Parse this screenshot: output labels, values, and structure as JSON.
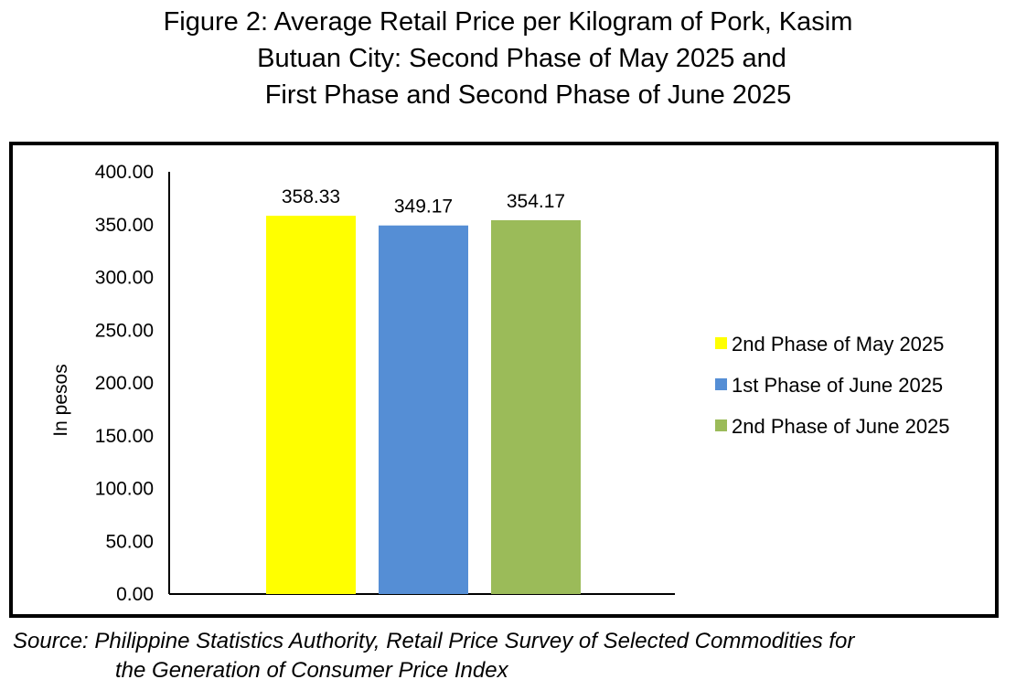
{
  "chart_data": {
    "type": "bar",
    "title_lines": [
      "Figure 2: Average Retail Price per Kilogram of Pork, Kasim",
      "Butuan City: Second Phase of May 2025 and",
      "First Phase and Second Phase of June 2025"
    ],
    "ylabel": "In pesos",
    "xlabel": "",
    "ylim": [
      0,
      400
    ],
    "yticks": [
      "0.00",
      "50.00",
      "100.00",
      "150.00",
      "200.00",
      "250.00",
      "300.00",
      "350.00",
      "400.00"
    ],
    "grid": false,
    "legend_position": "right",
    "series": [
      {
        "name": "2nd Phase of May 2025",
        "value": 358.33,
        "label": "358.33",
        "color": "#FFFF00"
      },
      {
        "name": "1st Phase of June 2025",
        "value": 349.17,
        "label": "349.17",
        "color": "#558ED5"
      },
      {
        "name": "2nd Phase of June 2025",
        "value": 354.17,
        "label": "354.17",
        "color": "#9BBB59"
      }
    ]
  },
  "source_lines": [
    "Source: Philippine Statistics Authority, Retail Price Survey of Selected Commodities for",
    "the Generation of Consumer Price Index"
  ]
}
